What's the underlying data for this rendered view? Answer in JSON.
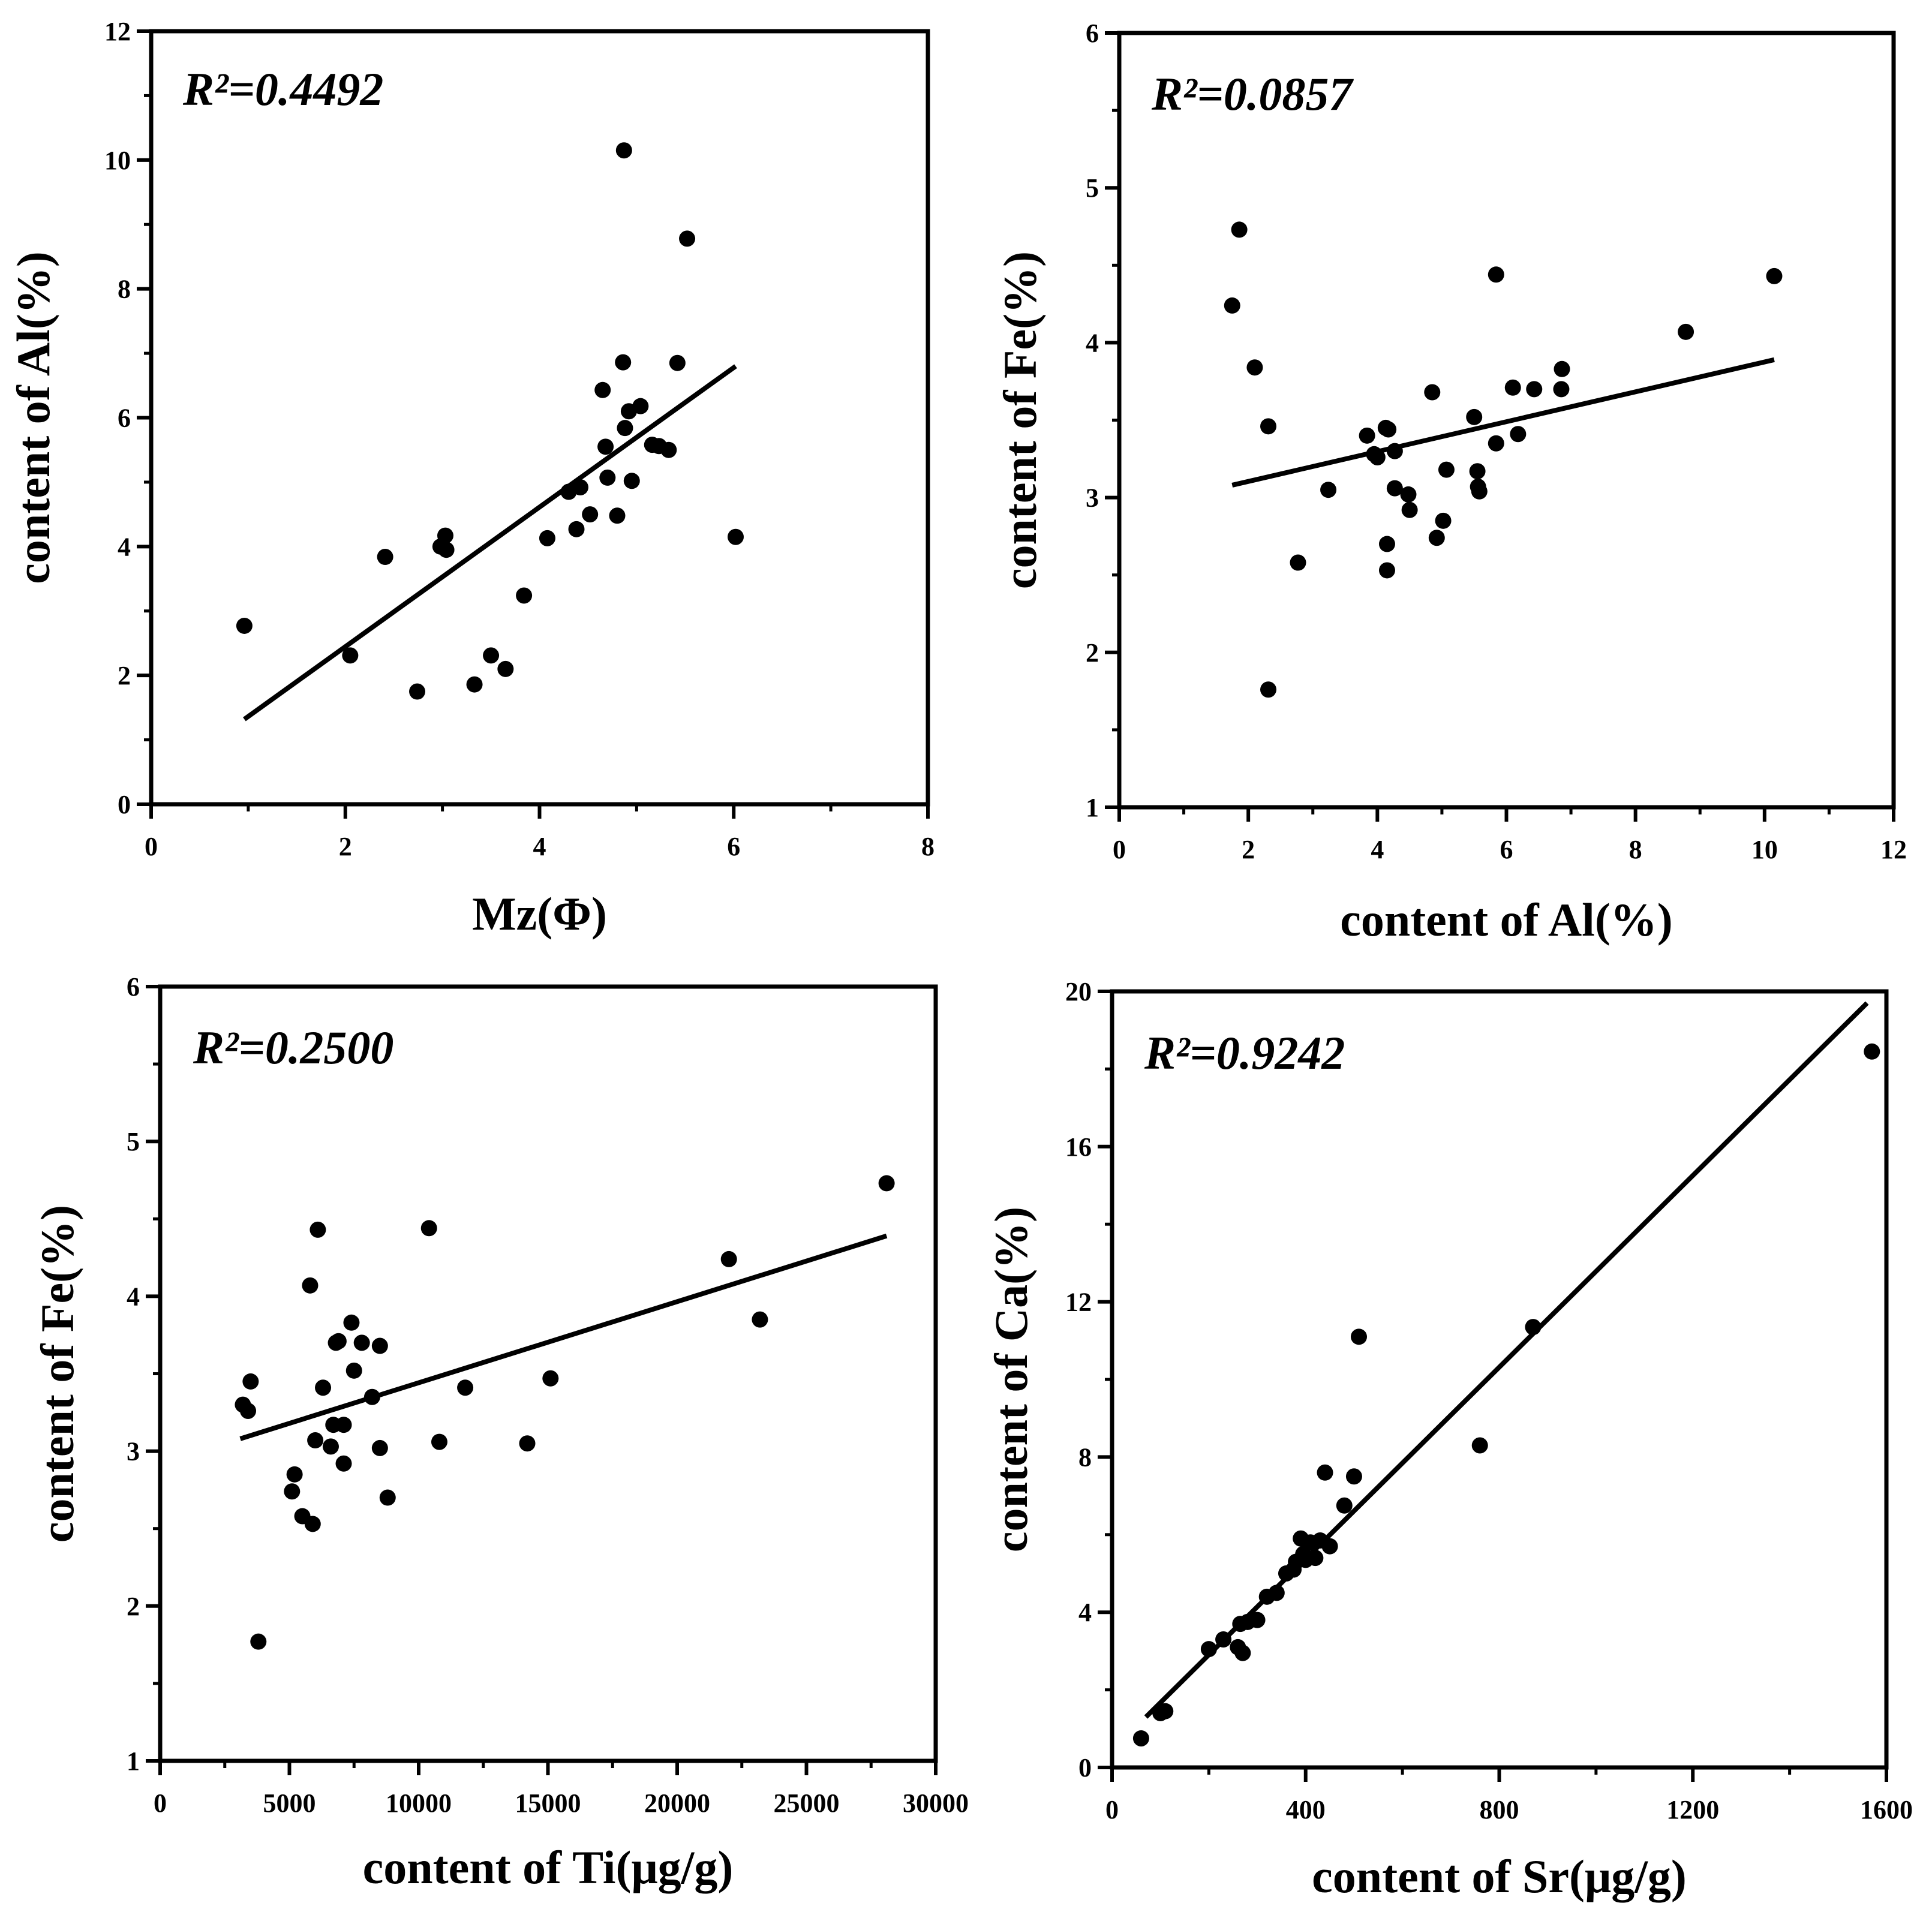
{
  "chart_data": [
    {
      "type": "scatter",
      "annotation": "R²=0.4492",
      "xlabel": "Mz(Φ)",
      "ylabel": "content of Al(%)",
      "xlim": [
        0,
        8
      ],
      "ylim": [
        0,
        12
      ],
      "xticks": [
        0,
        2,
        4,
        6,
        8
      ],
      "yticks": [
        0,
        2,
        4,
        6,
        8,
        10,
        12
      ],
      "x_minor_step": 1,
      "y_minor_step": 1,
      "trendline": {
        "x": [
          0.96,
          6.02
        ],
        "y": [
          1.32,
          6.8
        ]
      },
      "points": [
        [
          0.96,
          2.77
        ],
        [
          2.05,
          2.31
        ],
        [
          2.41,
          3.84
        ],
        [
          2.74,
          1.75
        ],
        [
          2.98,
          4.0
        ],
        [
          3.03,
          4.17
        ],
        [
          3.04,
          3.95
        ],
        [
          3.33,
          1.86
        ],
        [
          3.5,
          2.31
        ],
        [
          3.65,
          2.1
        ],
        [
          3.84,
          3.24
        ],
        [
          4.08,
          4.13
        ],
        [
          4.3,
          4.85
        ],
        [
          4.38,
          4.27
        ],
        [
          4.42,
          4.92
        ],
        [
          4.52,
          4.5
        ],
        [
          4.65,
          6.43
        ],
        [
          4.68,
          5.55
        ],
        [
          4.7,
          5.07
        ],
        [
          4.8,
          4.48
        ],
        [
          4.86,
          6.86
        ],
        [
          4.87,
          10.15
        ],
        [
          4.88,
          5.84
        ],
        [
          4.92,
          6.1
        ],
        [
          4.95,
          5.02
        ],
        [
          5.04,
          6.18
        ],
        [
          5.16,
          5.58
        ],
        [
          5.23,
          5.56
        ],
        [
          5.33,
          5.5
        ],
        [
          5.42,
          6.85
        ],
        [
          5.52,
          8.78
        ],
        [
          6.02,
          4.15
        ]
      ]
    },
    {
      "type": "scatter",
      "annotation": "R²=0.0857",
      "xlabel": "content of Al(%)",
      "ylabel": "content of Fe(%)",
      "xlim": [
        0,
        12
      ],
      "ylim": [
        1,
        6
      ],
      "xticks": [
        0,
        2,
        4,
        6,
        8,
        10,
        12
      ],
      "yticks": [
        1,
        2,
        3,
        4,
        5,
        6
      ],
      "x_minor_step": 1,
      "y_minor_step": 0.5,
      "trendline": {
        "x": [
          1.75,
          10.15
        ],
        "y": [
          3.08,
          3.89
        ]
      },
      "points": [
        [
          1.75,
          4.24
        ],
        [
          1.86,
          4.73
        ],
        [
          2.1,
          3.84
        ],
        [
          2.31,
          3.46
        ],
        [
          2.31,
          1.76
        ],
        [
          2.77,
          2.58
        ],
        [
          3.24,
          3.05
        ],
        [
          3.84,
          3.4
        ],
        [
          3.95,
          3.28
        ],
        [
          4.0,
          3.26
        ],
        [
          4.13,
          3.45
        ],
        [
          4.15,
          2.7
        ],
        [
          4.15,
          2.53
        ],
        [
          4.17,
          3.44
        ],
        [
          4.27,
          3.06
        ],
        [
          4.27,
          3.3
        ],
        [
          4.48,
          3.02
        ],
        [
          4.5,
          2.92
        ],
        [
          4.85,
          3.68
        ],
        [
          4.92,
          2.74
        ],
        [
          5.02,
          2.85
        ],
        [
          5.07,
          3.18
        ],
        [
          5.5,
          3.52
        ],
        [
          5.55,
          3.17
        ],
        [
          5.56,
          3.07
        ],
        [
          5.58,
          3.04
        ],
        [
          5.84,
          3.35
        ],
        [
          5.84,
          4.44
        ],
        [
          6.1,
          3.71
        ],
        [
          6.18,
          3.41
        ],
        [
          6.43,
          3.7
        ],
        [
          6.85,
          3.7
        ],
        [
          6.86,
          3.83
        ],
        [
          8.78,
          4.07
        ],
        [
          10.15,
          4.43
        ]
      ]
    },
    {
      "type": "scatter",
      "annotation": "R²=0.2500",
      "xlabel": "content of Ti(μg/g)",
      "ylabel": "content of Fe(%)",
      "xlim": [
        0,
        30000
      ],
      "ylim": [
        1,
        6
      ],
      "xticks": [
        0,
        5000,
        10000,
        15000,
        20000,
        25000,
        30000
      ],
      "yticks": [
        1,
        2,
        3,
        4,
        5,
        6
      ],
      "x_minor_step": 2500,
      "y_minor_step": 0.5,
      "trendline": {
        "x": [
          3100,
          28100
        ],
        "y": [
          3.08,
          4.39
        ]
      },
      "points": [
        [
          3200,
          3.3
        ],
        [
          3400,
          3.26
        ],
        [
          3500,
          3.45
        ],
        [
          3800,
          1.77
        ],
        [
          5100,
          2.74
        ],
        [
          5200,
          2.85
        ],
        [
          5500,
          2.58
        ],
        [
          5800,
          4.07
        ],
        [
          5900,
          2.53
        ],
        [
          6000,
          3.07
        ],
        [
          6100,
          4.43
        ],
        [
          6300,
          3.41
        ],
        [
          6600,
          3.03
        ],
        [
          6700,
          3.17
        ],
        [
          6800,
          3.7
        ],
        [
          6900,
          3.71
        ],
        [
          7100,
          2.92
        ],
        [
          7100,
          3.17
        ],
        [
          7400,
          3.83
        ],
        [
          7500,
          3.52
        ],
        [
          7800,
          3.7
        ],
        [
          8200,
          3.35
        ],
        [
          8500,
          3.68
        ],
        [
          8500,
          3.02
        ],
        [
          8800,
          2.7
        ],
        [
          10400,
          4.44
        ],
        [
          10800,
          3.06
        ],
        [
          11800,
          3.41
        ],
        [
          14200,
          3.05
        ],
        [
          15100,
          3.47
        ],
        [
          22000,
          4.24
        ],
        [
          23200,
          3.85
        ],
        [
          28100,
          4.73
        ]
      ]
    },
    {
      "type": "scatter",
      "annotation": "R²=0.9242",
      "xlabel": "content of Sr(μg/g)",
      "ylabel": "content of Ca(%)",
      "xlim": [
        0,
        1600
      ],
      "ylim": [
        0,
        20
      ],
      "xticks": [
        0,
        400,
        800,
        1200,
        1600
      ],
      "yticks": [
        0,
        4,
        8,
        12,
        16,
        20
      ],
      "x_minor_step": 200,
      "y_minor_step": 2,
      "trendline": {
        "x": [
          70,
          1560
        ],
        "y": [
          1.3,
          19.7
        ]
      },
      "points": [
        [
          60,
          0.75
        ],
        [
          100,
          1.4
        ],
        [
          110,
          1.45
        ],
        [
          200,
          3.05
        ],
        [
          230,
          3.3
        ],
        [
          260,
          3.1
        ],
        [
          265,
          3.7
        ],
        [
          270,
          2.95
        ],
        [
          280,
          3.75
        ],
        [
          300,
          3.8
        ],
        [
          320,
          4.4
        ],
        [
          340,
          4.5
        ],
        [
          360,
          5.0
        ],
        [
          375,
          5.1
        ],
        [
          380,
          5.3
        ],
        [
          390,
          5.9
        ],
        [
          395,
          5.5
        ],
        [
          400,
          5.35
        ],
        [
          410,
          5.8
        ],
        [
          420,
          5.4
        ],
        [
          430,
          5.85
        ],
        [
          440,
          7.6
        ],
        [
          450,
          5.7
        ],
        [
          480,
          6.75
        ],
        [
          500,
          7.5
        ],
        [
          510,
          11.1
        ],
        [
          760,
          8.3
        ],
        [
          870,
          11.35
        ],
        [
          1570,
          18.45
        ]
      ]
    }
  ]
}
